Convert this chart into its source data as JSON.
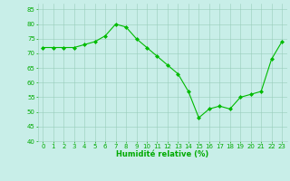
{
  "x": [
    0,
    1,
    2,
    3,
    4,
    5,
    6,
    7,
    8,
    9,
    10,
    11,
    12,
    13,
    14,
    15,
    16,
    17,
    18,
    19,
    20,
    21,
    22,
    23
  ],
  "y": [
    72,
    72,
    72,
    72,
    73,
    74,
    76,
    80,
    79,
    75,
    72,
    69,
    66,
    63,
    57,
    48,
    51,
    52,
    51,
    55,
    56,
    57,
    68,
    74
  ],
  "line_color": "#00bb00",
  "marker_color": "#00bb00",
  "bg_color": "#c8eee8",
  "grid_color": "#99ccbb",
  "xlabel": "Humidité relative (%)",
  "xlabel_color": "#00aa00",
  "tick_color": "#00aa00",
  "ylim": [
    40,
    87
  ],
  "yticks": [
    40,
    45,
    50,
    55,
    60,
    65,
    70,
    75,
    80,
    85
  ],
  "xlim": [
    -0.5,
    23.5
  ],
  "xticks": [
    0,
    1,
    2,
    3,
    4,
    5,
    6,
    7,
    8,
    9,
    10,
    11,
    12,
    13,
    14,
    15,
    16,
    17,
    18,
    19,
    20,
    21,
    22,
    23
  ],
  "tick_fontsize": 5.0,
  "xlabel_fontsize": 6.0,
  "marker_size": 2.0,
  "line_width": 0.8
}
